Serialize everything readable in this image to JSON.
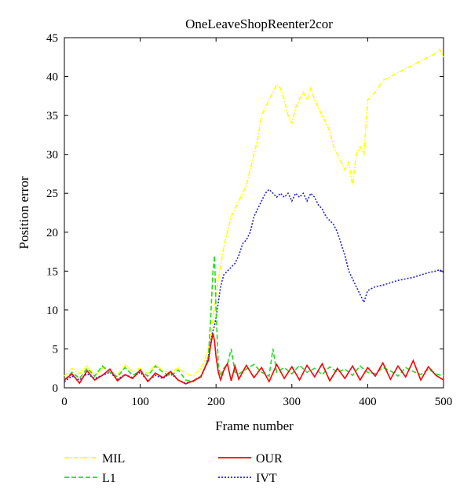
{
  "chart_data": {
    "type": "line",
    "title": "OneLeaveShopReenter2cor",
    "xlabel": "Frame number",
    "ylabel": "Position error",
    "xlim": [
      0,
      500
    ],
    "ylim": [
      0,
      45
    ],
    "xticks": [
      0,
      100,
      200,
      300,
      400,
      500
    ],
    "yticks": [
      0,
      5,
      10,
      15,
      20,
      25,
      30,
      35,
      40,
      45
    ],
    "grid": false,
    "legend_position": "bottom",
    "series": [
      {
        "name": "MIL",
        "color": "#ffff00",
        "style": "dash-dot",
        "x": [
          0,
          10,
          20,
          30,
          40,
          50,
          60,
          70,
          80,
          90,
          100,
          110,
          120,
          130,
          140,
          150,
          160,
          170,
          180,
          185,
          190,
          195,
          200,
          205,
          210,
          215,
          220,
          225,
          230,
          240,
          250,
          255,
          260,
          265,
          270,
          275,
          280,
          285,
          290,
          295,
          300,
          305,
          310,
          315,
          320,
          325,
          330,
          335,
          340,
          345,
          350,
          355,
          360,
          365,
          370,
          375,
          380,
          385,
          390,
          395,
          400,
          410,
          420,
          430,
          440,
          450,
          460,
          470,
          480,
          490,
          495,
          500
        ],
        "y": [
          1.5,
          2.5,
          1.8,
          2.8,
          1.5,
          2.6,
          2.2,
          1.7,
          2.9,
          2.1,
          2.5,
          1.8,
          3.0,
          2.2,
          1.9,
          2.6,
          1.8,
          1.5,
          2.5,
          3.5,
          5,
          8,
          12,
          15,
          18,
          20,
          22,
          23,
          24,
          26,
          30,
          32,
          35,
          36,
          37,
          38,
          39,
          38.5,
          37,
          35,
          34,
          36,
          37,
          38,
          37,
          38.5,
          37,
          36,
          35,
          34,
          33,
          31,
          30,
          29,
          28,
          29,
          26,
          30,
          31,
          30,
          37,
          38,
          39.5,
          40,
          40.5,
          41,
          41.5,
          42,
          42.5,
          43,
          43.5,
          42.5
        ]
      },
      {
        "name": "L1",
        "color": "#22dd22",
        "style": "dashed",
        "x": [
          0,
          10,
          20,
          30,
          40,
          50,
          60,
          70,
          80,
          90,
          100,
          110,
          120,
          130,
          140,
          150,
          160,
          170,
          180,
          185,
          190,
          193,
          196,
          198,
          200,
          203,
          206,
          210,
          215,
          220,
          225,
          230,
          240,
          250,
          260,
          270,
          275,
          280,
          290,
          300,
          310,
          320,
          330,
          340,
          350,
          360,
          370,
          380,
          390,
          400,
          410,
          420,
          430,
          440,
          450,
          460,
          470,
          480,
          490,
          500
        ],
        "y": [
          1.0,
          2.0,
          1.2,
          2.5,
          1.5,
          2.8,
          2.0,
          1.4,
          2.6,
          1.6,
          2.2,
          1.5,
          2.8,
          2.0,
          1.5,
          2.3,
          1.0,
          0.8,
          1.5,
          2.5,
          4,
          9,
          15,
          17,
          10,
          3,
          1.5,
          2.5,
          3,
          5,
          2,
          1.8,
          2.4,
          3,
          2,
          1.5,
          5,
          2,
          2.6,
          1.8,
          2.9,
          2,
          2.5,
          1.7,
          2.7,
          2,
          2.4,
          1.6,
          2.8,
          2,
          1.8,
          2.6,
          2.2,
          1.5,
          2.6,
          2.1,
          1.7,
          2.4,
          1.8,
          1.5
        ]
      },
      {
        "name": "OUR",
        "color": "#ff0000",
        "style": "solid",
        "x": [
          0,
          10,
          20,
          30,
          40,
          50,
          60,
          70,
          80,
          90,
          100,
          110,
          120,
          130,
          140,
          150,
          160,
          170,
          180,
          185,
          190,
          193,
          196,
          198,
          200,
          203,
          206,
          210,
          215,
          220,
          225,
          230,
          240,
          250,
          260,
          270,
          280,
          290,
          300,
          310,
          320,
          330,
          340,
          350,
          360,
          370,
          380,
          390,
          400,
          410,
          420,
          430,
          440,
          450,
          460,
          470,
          480,
          490,
          500
        ],
        "y": [
          1.0,
          1.8,
          0.6,
          2.2,
          1.0,
          1.6,
          2.4,
          0.9,
          1.7,
          1.2,
          2.3,
          0.8,
          1.9,
          1.3,
          2.1,
          1.0,
          0.5,
          0.9,
          1.4,
          2.5,
          3.5,
          5.5,
          7,
          6,
          4,
          2,
          1,
          2.2,
          3.1,
          0.9,
          2.8,
          1.1,
          2.9,
          1.3,
          2.6,
          0.8,
          3.0,
          1.2,
          2.7,
          1.0,
          2.9,
          1.4,
          3.1,
          0.9,
          2.5,
          1.2,
          2.8,
          1.0,
          2.6,
          1.5,
          3.2,
          1.1,
          2.8,
          1.4,
          3.5,
          1.0,
          2.7,
          1.6,
          1.0
        ]
      },
      {
        "name": "IVT",
        "color": "#2222cc",
        "style": "dotted",
        "x": [
          0,
          10,
          20,
          30,
          40,
          50,
          60,
          70,
          80,
          90,
          100,
          110,
          120,
          130,
          140,
          150,
          160,
          170,
          180,
          185,
          190,
          195,
          198,
          200,
          203,
          206,
          210,
          215,
          220,
          225,
          230,
          235,
          240,
          245,
          250,
          255,
          260,
          265,
          270,
          275,
          280,
          285,
          290,
          295,
          300,
          305,
          310,
          315,
          320,
          325,
          330,
          335,
          340,
          345,
          350,
          355,
          360,
          365,
          370,
          375,
          380,
          385,
          390,
          395,
          400,
          410,
          420,
          430,
          440,
          450,
          460,
          470,
          480,
          490,
          495,
          500
        ],
        "y": [
          0.8,
          1.5,
          1.0,
          1.8,
          1.2,
          1.6,
          2.0,
          1.1,
          1.7,
          1.3,
          2.0,
          0.9,
          1.6,
          1.2,
          1.9,
          1.0,
          0.6,
          0.9,
          1.5,
          2.5,
          4,
          7,
          8,
          9,
          11,
          13,
          14.5,
          15,
          15.5,
          16,
          17,
          18.5,
          19,
          20,
          22,
          23,
          24,
          25,
          25.5,
          25,
          24.5,
          25,
          24.5,
          25,
          24,
          25,
          24.5,
          25,
          24,
          25,
          24.5,
          23.5,
          23,
          22,
          21.5,
          21,
          20,
          18.5,
          17,
          15,
          14,
          13,
          12,
          11,
          12.5,
          13,
          13.2,
          13.5,
          13.8,
          14,
          14.2,
          14.5,
          14.8,
          15,
          15.2,
          14.8
        ]
      }
    ]
  }
}
